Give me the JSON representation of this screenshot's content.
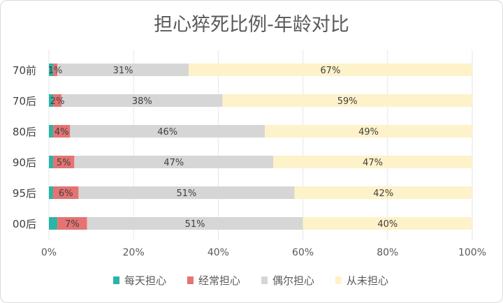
{
  "chart_data": {
    "type": "bar",
    "orientation": "horizontal",
    "stacked": "percent",
    "title": "担心猝死比例-年龄对比",
    "categories": [
      "70前",
      "70后",
      "80后",
      "90后",
      "95后",
      "00后"
    ],
    "series": [
      {
        "name": "每天担心",
        "color": "#2bb5a8",
        "values": [
          1,
          1,
          1,
          1,
          1,
          2
        ],
        "labels": [
          "",
          "",
          "",
          "",
          "",
          ""
        ]
      },
      {
        "name": "经常担心",
        "color": "#e57373",
        "values": [
          1,
          2,
          4,
          5,
          6,
          7
        ],
        "labels": [
          "1%",
          "2%",
          "4%",
          "5%",
          "6%",
          "7%"
        ]
      },
      {
        "name": "偶尔担心",
        "color": "#d6d6d6",
        "values": [
          31,
          38,
          46,
          47,
          51,
          51
        ],
        "labels": [
          "31%",
          "38%",
          "46%",
          "47%",
          "51%",
          "51%"
        ]
      },
      {
        "name": "从未担心",
        "color": "#fdf2c9",
        "values": [
          67,
          59,
          49,
          47,
          42,
          40
        ],
        "labels": [
          "67%",
          "59%",
          "49%",
          "47%",
          "42%",
          "40%"
        ]
      }
    ],
    "xticks": [
      "0%",
      "20%",
      "40%",
      "60%",
      "80%",
      "100%"
    ],
    "xlim": [
      0,
      100
    ],
    "grid": true,
    "legend": "bottom"
  }
}
